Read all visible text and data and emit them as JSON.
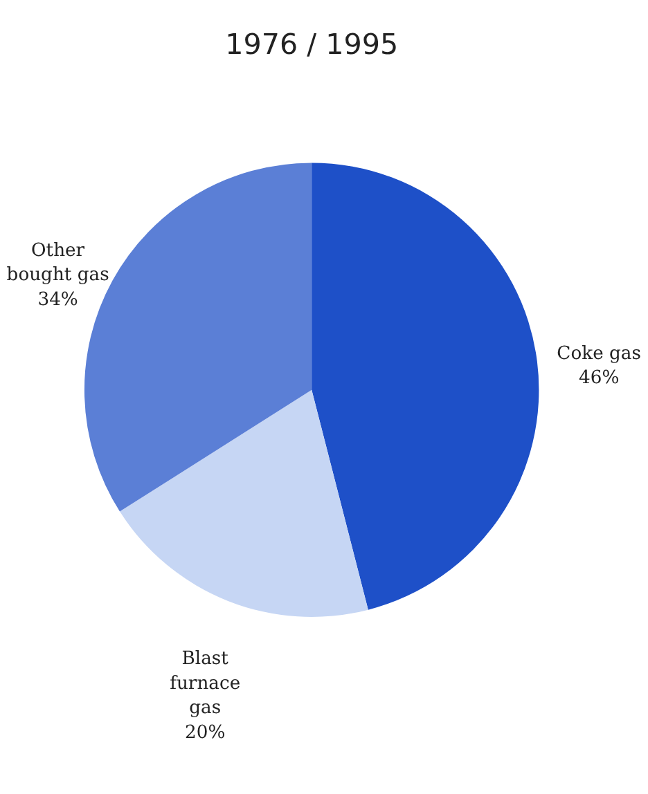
{
  "chart_data": {
    "type": "pie",
    "title": "1976 / 1995",
    "categories": [
      "Coke gas",
      "Blast furnace gas",
      "Other bought gas"
    ],
    "values": [
      46,
      20,
      34
    ],
    "value_labels": [
      "46%",
      "20%",
      "34%"
    ],
    "colors": [
      "#1e50c8",
      "#c6d6f4",
      "#5b7fd6"
    ],
    "legend": false
  }
}
